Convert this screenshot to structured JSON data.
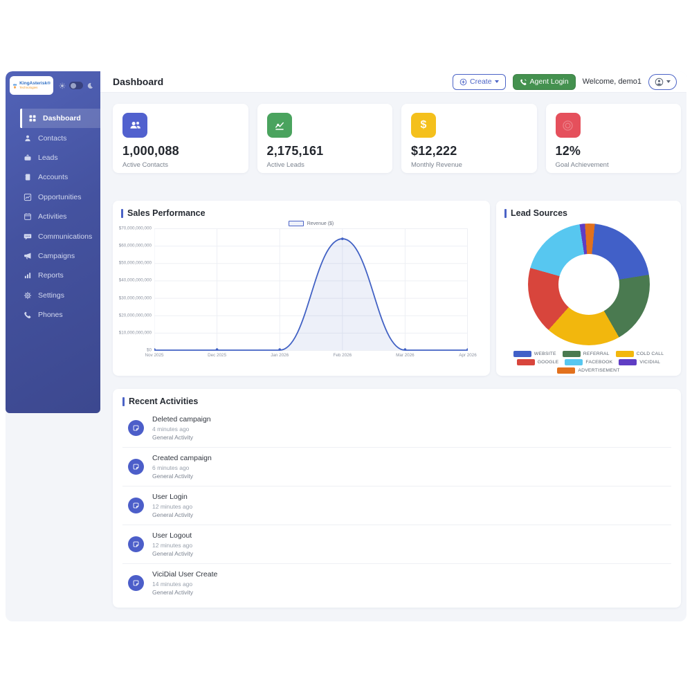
{
  "brand": {
    "name": "KingAsterisk®",
    "sub": "Technologies"
  },
  "sidebar": {
    "items": [
      {
        "label": "Dashboard",
        "active": true
      },
      {
        "label": "Contacts"
      },
      {
        "label": "Leads"
      },
      {
        "label": "Accounts"
      },
      {
        "label": "Opportunities"
      },
      {
        "label": "Activities"
      },
      {
        "label": "Communications"
      },
      {
        "label": "Campaigns"
      },
      {
        "label": "Reports"
      },
      {
        "label": "Settings"
      },
      {
        "label": "Phones"
      }
    ]
  },
  "header": {
    "title": "Dashboard",
    "create_label": "Create",
    "agent_login_label": "Agent Login",
    "welcome": "Welcome, demo1"
  },
  "stats": [
    {
      "value": "1,000,088",
      "label": "Active Contacts",
      "color": "#5161ce",
      "icon": "people-icon"
    },
    {
      "value": "2,175,161",
      "label": "Active Leads",
      "color": "#4aa35e",
      "icon": "graph-up-icon"
    },
    {
      "value": "$12,222",
      "label": "Monthly Revenue",
      "color": "#f4c01c",
      "icon": "dollar-icon"
    },
    {
      "value": "12%",
      "label": "Goal Achievement",
      "color": "#e5505c",
      "icon": "target-icon"
    }
  ],
  "sales": {
    "title": "Sales Performance",
    "legend": "Revenue ($)"
  },
  "lead_sources": {
    "title": "Lead Sources"
  },
  "activities": {
    "title": "Recent Activities",
    "items": [
      {
        "title": "Deleted campaign",
        "time": "4 minutes ago",
        "category": "General Activity"
      },
      {
        "title": "Created campaign",
        "time": "6 minutes ago",
        "category": "General Activity"
      },
      {
        "title": "User Login",
        "time": "12 minutes ago",
        "category": "General Activity"
      },
      {
        "title": "User Logout",
        "time": "12 minutes ago",
        "category": "General Activity"
      },
      {
        "title": "ViciDial User Create",
        "time": "14 minutes ago",
        "category": "General Activity"
      }
    ]
  },
  "chart_data": [
    {
      "type": "line",
      "title": "Sales Performance",
      "x": [
        "Nov 2025",
        "Dec 2025",
        "Jan 2026",
        "Feb 2026",
        "Mar 2026",
        "Apr 2026"
      ],
      "series": [
        {
          "name": "Revenue ($)",
          "values": [
            0,
            0,
            0,
            64000000000,
            0,
            0
          ]
        }
      ],
      "ylim": [
        0,
        70000000000
      ],
      "yticks": [
        "$70,000,000,000",
        "$60,000,000,000",
        "$50,000,000,000",
        "$40,000,000,000",
        "$30,000,000,000",
        "$20,000,000,000",
        "$10,000,000,000",
        "$0"
      ],
      "grid": true,
      "legend_position": "top-center",
      "line_color": "#4161c4",
      "fill_color": "rgba(78,104,200,0.10)"
    },
    {
      "type": "pie",
      "title": "Lead Sources",
      "donut": true,
      "rotation_deg": 5.6,
      "slices": [
        {
          "label": "WEBSITE",
          "pct": 20.9,
          "color": "#4160c8"
        },
        {
          "label": "REFERRAL",
          "pct": 19.3,
          "color": "#4a7a50"
        },
        {
          "label": "COLD CALL",
          "pct": 19.8,
          "color": "#f2b70d"
        },
        {
          "label": "GOOGLE",
          "pct": 17.8,
          "color": "#d8453c"
        },
        {
          "label": "FACEBOOK",
          "pct": 18.2,
          "color": "#57c7f0"
        },
        {
          "label": "VICIDIAL",
          "pct": 1.4,
          "color": "#5f3dc4"
        },
        {
          "label": "ADVERTISEMENT",
          "pct": 2.6,
          "color": "#e2711d"
        }
      ],
      "legend_position": "bottom"
    }
  ]
}
